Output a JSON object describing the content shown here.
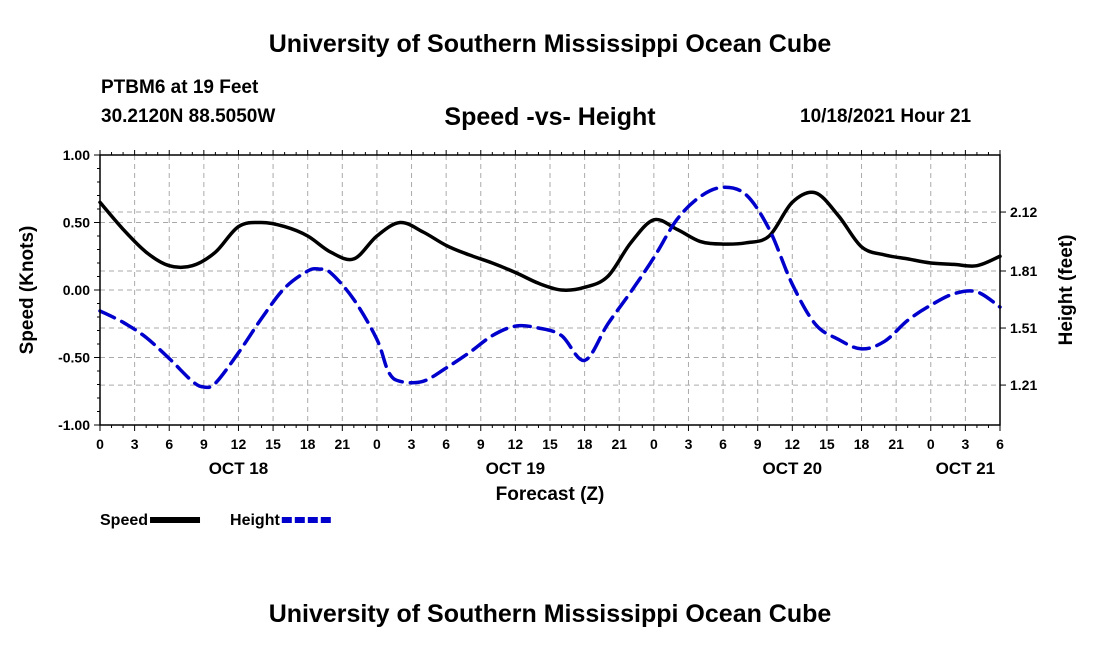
{
  "header": {
    "org_title": "University of Southern Mississippi Ocean Cube",
    "station": "PTBM6 at 19 Feet",
    "coords": "30.2120N  88.5050W",
    "date": "10/18/2021 Hour 21"
  },
  "footer": {
    "org_title": "University of Southern Mississippi Ocean Cube"
  },
  "chart_data": {
    "type": "line",
    "title": "Speed -vs- Height",
    "xlabel": "Forecast (Z)",
    "ylabel": "Speed (Knots)",
    "y2label": "Height (feet)",
    "xlim": [
      0,
      78
    ],
    "ylim": [
      -1.0,
      1.0
    ],
    "y2lim": [
      1.0,
      2.42
    ],
    "y_ticks": [
      "1.00",
      "0.50",
      "0.00",
      "-0.50",
      "-1.00"
    ],
    "y_tick_values": [
      1.0,
      0.5,
      0.0,
      -0.5,
      -1.0
    ],
    "y2_ticks": [
      "2.12",
      "1.81",
      "1.51",
      "1.21"
    ],
    "y2_tick_values": [
      2.12,
      1.81,
      1.51,
      1.21
    ],
    "x_ticks": [
      "0",
      "3",
      "6",
      "9",
      "12",
      "15",
      "18",
      "21",
      "0",
      "3",
      "6",
      "9",
      "12",
      "15",
      "18",
      "21",
      "0",
      "3",
      "6",
      "9",
      "12",
      "15",
      "18",
      "21",
      "0",
      "3",
      "6"
    ],
    "date_labels": [
      {
        "label": "OCT 18",
        "hour": 12
      },
      {
        "label": "OCT 19",
        "hour": 36
      },
      {
        "label": "OCT 20",
        "hour": 60
      },
      {
        "label": "OCT 21",
        "hour": 75
      }
    ],
    "grid": true,
    "series": [
      {
        "name": "Speed",
        "color": "#000000",
        "axis": "left",
        "dash": "solid",
        "x": [
          0,
          2,
          4,
          6,
          8,
          10,
          12,
          14,
          16,
          18,
          20,
          22,
          24,
          26,
          28,
          30,
          32,
          34,
          36,
          38,
          40,
          42,
          44,
          46,
          48,
          50,
          52,
          54,
          56,
          58,
          60,
          62,
          64,
          66,
          68,
          70,
          72,
          74,
          76,
          78
        ],
        "values": [
          0.65,
          0.45,
          0.28,
          0.18,
          0.18,
          0.28,
          0.47,
          0.5,
          0.47,
          0.4,
          0.28,
          0.23,
          0.4,
          0.5,
          0.43,
          0.33,
          0.26,
          0.2,
          0.13,
          0.05,
          0.0,
          0.02,
          0.1,
          0.35,
          0.52,
          0.45,
          0.36,
          0.34,
          0.35,
          0.4,
          0.65,
          0.72,
          0.55,
          0.32,
          0.26,
          0.23,
          0.2,
          0.19,
          0.18,
          0.25
        ]
      },
      {
        "name": "Height",
        "color": "#0000cc",
        "axis": "right",
        "dash": "dashed",
        "x": [
          0,
          2,
          4,
          6,
          8,
          9,
          10,
          12,
          14,
          16,
          18,
          19,
          20,
          22,
          24,
          25,
          26,
          28,
          30,
          32,
          34,
          36,
          38,
          40,
          42,
          44,
          46,
          48,
          50,
          52,
          54,
          56,
          58,
          60,
          62,
          64,
          66,
          68,
          70,
          72,
          74,
          76,
          78
        ],
        "values": [
          1.6,
          1.54,
          1.46,
          1.35,
          1.23,
          1.2,
          1.22,
          1.38,
          1.56,
          1.72,
          1.81,
          1.82,
          1.8,
          1.66,
          1.45,
          1.28,
          1.23,
          1.23,
          1.3,
          1.38,
          1.47,
          1.52,
          1.51,
          1.47,
          1.34,
          1.53,
          1.7,
          1.88,
          2.08,
          2.2,
          2.25,
          2.21,
          2.03,
          1.74,
          1.53,
          1.45,
          1.4,
          1.44,
          1.55,
          1.63,
          1.69,
          1.7,
          1.62
        ]
      }
    ],
    "legend": [
      {
        "label": "Speed",
        "color": "#000000",
        "dash": "solid"
      },
      {
        "label": "Height",
        "color": "#0000cc",
        "dash": "dashed"
      }
    ],
    "legend_placement": "bottom-left"
  }
}
